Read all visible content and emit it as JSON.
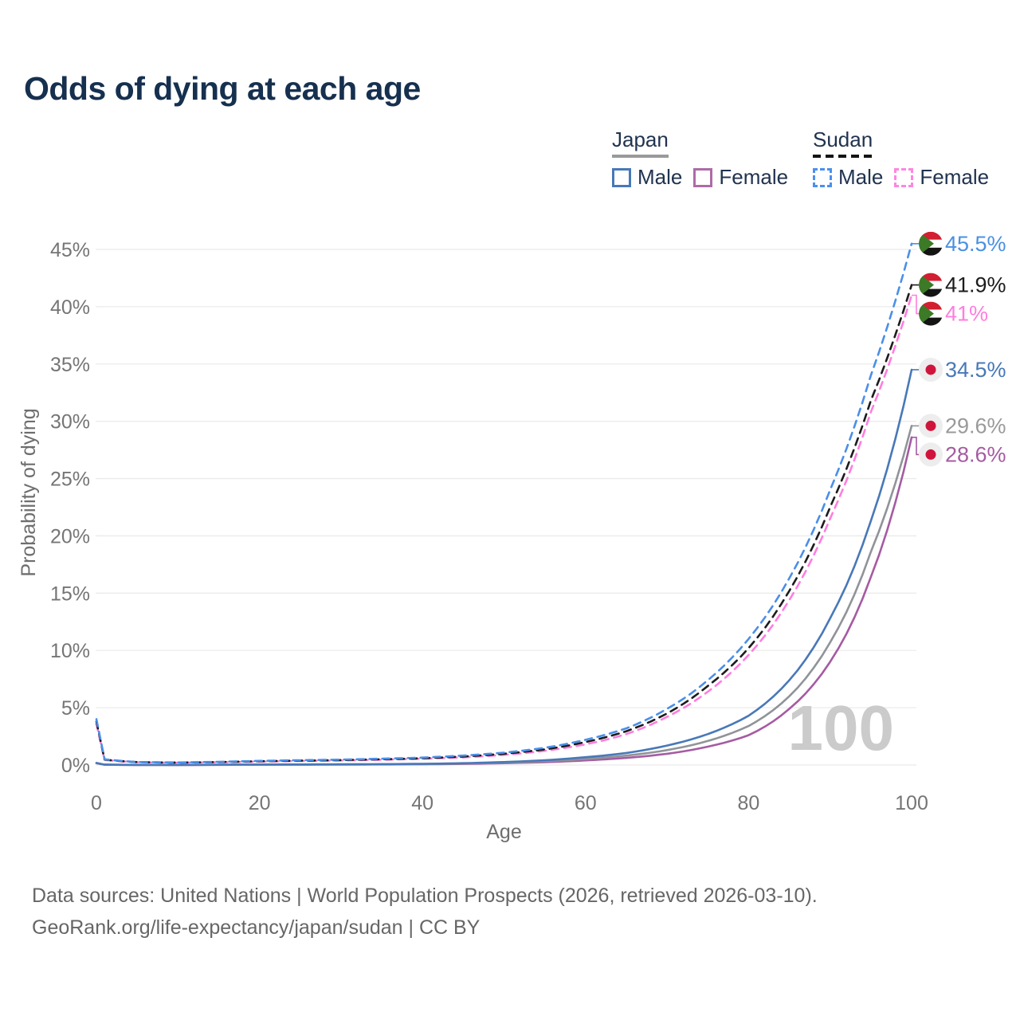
{
  "title": "Odds of dying at each age",
  "legend": {
    "groups": [
      {
        "label": "Japan",
        "line_style": "solid",
        "underline_color": "#9a9a9a",
        "items": [
          {
            "label": "Male",
            "color": "#4878b8"
          },
          {
            "label": "Female",
            "color": "#ad6ba8"
          }
        ]
      },
      {
        "label": "Sudan",
        "line_style": "dashed",
        "underline_color": "#141414",
        "items": [
          {
            "label": "Male",
            "color": "#4a90ee"
          },
          {
            "label": "Female",
            "color": "#ff85e2"
          }
        ]
      }
    ]
  },
  "footer": {
    "line1": "Data sources: United Nations | World Population Prospects (2026, retrieved 2026-03-10).",
    "line2": "GeoRank.org/life-expectancy/japan/sudan | CC BY"
  },
  "chart_data": {
    "type": "line",
    "title": "Odds of dying at each age",
    "xlabel": "Age",
    "ylabel": "Probability of dying",
    "unit": "percent",
    "xlim": [
      0,
      100
    ],
    "ylim": [
      0,
      46
    ],
    "x_ticks": [
      0,
      20,
      40,
      60,
      80,
      100
    ],
    "y_ticks": [
      0,
      5,
      10,
      15,
      20,
      25,
      30,
      35,
      40,
      45
    ],
    "y_tick_suffix": "%",
    "grid": true,
    "legend_position": "top-right",
    "age_ticker": "100",
    "x": [
      0,
      1,
      5,
      10,
      15,
      20,
      25,
      30,
      35,
      40,
      45,
      50,
      55,
      60,
      65,
      70,
      75,
      80,
      85,
      90,
      95,
      100
    ],
    "series": [
      {
        "name": "Sudan Male",
        "country": "Sudan",
        "sex": "Male",
        "style": "dashed",
        "color": "#4a8fe8",
        "label_color": "#4a90e2",
        "end_label": "45.5%",
        "flag": "sudan-flag-icon",
        "values": [
          4.0,
          0.5,
          0.26,
          0.22,
          0.28,
          0.36,
          0.42,
          0.47,
          0.55,
          0.65,
          0.82,
          1.08,
          1.5,
          2.2,
          3.2,
          4.9,
          7.4,
          11.0,
          16.3,
          24.0,
          34.0,
          45.5
        ]
      },
      {
        "name": "Sudan Both sexes",
        "country": "Sudan",
        "sex": "Both",
        "style": "dashed",
        "color": "#1c1c1c",
        "label_color": "#1c1c1c",
        "end_label": "41.9%",
        "flag": "sudan-flag-icon",
        "values": [
          3.8,
          0.47,
          0.25,
          0.21,
          0.26,
          0.33,
          0.38,
          0.43,
          0.5,
          0.59,
          0.74,
          0.98,
          1.36,
          2.0,
          2.95,
          4.5,
          6.9,
          10.2,
          15.2,
          22.5,
          31.8,
          41.9
        ]
      },
      {
        "name": "Sudan Female",
        "country": "Sudan",
        "sex": "Female",
        "style": "dashed",
        "color": "#ff7de0",
        "label_color": "#ff7de0",
        "end_label": "41%",
        "flag": "sudan-flag-icon",
        "values": [
          3.6,
          0.44,
          0.24,
          0.2,
          0.24,
          0.3,
          0.35,
          0.39,
          0.46,
          0.54,
          0.67,
          0.88,
          1.24,
          1.8,
          2.7,
          4.2,
          6.4,
          9.6,
          14.4,
          21.5,
          30.8,
          41.0
        ]
      },
      {
        "name": "Japan Male",
        "country": "Japan",
        "sex": "Male",
        "style": "solid",
        "color": "#4878b8",
        "label_color": "#4878b8",
        "end_label": "34.5%",
        "flag": "japan-flag-icon",
        "values": [
          0.18,
          0.03,
          0.012,
          0.01,
          0.022,
          0.04,
          0.05,
          0.06,
          0.075,
          0.1,
          0.16,
          0.26,
          0.42,
          0.68,
          1.05,
          1.7,
          2.7,
          4.3,
          7.4,
          12.8,
          21.3,
          34.5
        ]
      },
      {
        "name": "Japan Both sexes",
        "country": "Japan",
        "sex": "Both",
        "style": "solid",
        "color": "#909398",
        "label_color": "#9a9a9a",
        "end_label": "29.6%",
        "flag": "japan-flag-icon",
        "values": [
          0.17,
          0.027,
          0.01,
          0.009,
          0.018,
          0.032,
          0.04,
          0.048,
          0.06,
          0.082,
          0.13,
          0.21,
          0.33,
          0.53,
          0.82,
          1.3,
          2.1,
          3.4,
          6.0,
          10.7,
          18.6,
          29.6
        ]
      },
      {
        "name": "Japan Female",
        "country": "Japan",
        "sex": "Female",
        "style": "solid",
        "color": "#a55ba2",
        "label_color": "#a55ba2",
        "end_label": "28.6%",
        "flag": "japan-flag-icon",
        "values": [
          0.16,
          0.025,
          0.009,
          0.008,
          0.015,
          0.025,
          0.03,
          0.037,
          0.048,
          0.065,
          0.1,
          0.16,
          0.25,
          0.4,
          0.62,
          0.98,
          1.6,
          2.6,
          4.9,
          9.0,
          16.4,
          28.6
        ]
      }
    ],
    "colors": {
      "grid": "#ebebeb",
      "tick_text": "#757575",
      "axis_title": "#6e6e6e",
      "watermark": "#cbcbcb",
      "title_text": "#16304f",
      "sudan_flag_red": "#d21f31",
      "sudan_flag_green": "#3d7a28",
      "sudan_flag_black": "#141414",
      "japan_flag_bg": "#ededed",
      "japan_flag_red": "#d0153c"
    }
  }
}
